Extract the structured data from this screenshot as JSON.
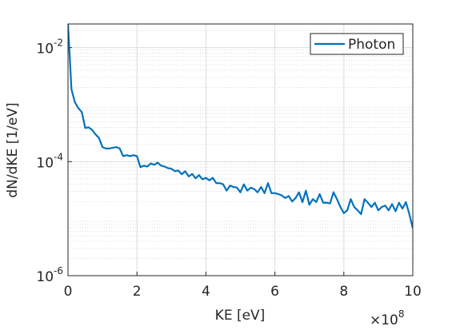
{
  "chart_data": {
    "type": "line",
    "xlabel": "KE [eV]",
    "ylabel": "dN/dKE [1/eV]",
    "x_multiplier": "×10",
    "x_multiplier_exp": "8",
    "yscale": "log",
    "grid": true,
    "minor_grid": true,
    "legend": "northeast",
    "xlim": [
      0,
      1000000000.0
    ],
    "xticks": [
      {
        "value": 0,
        "label": "0"
      },
      {
        "value": 200000000.0,
        "label": "2"
      },
      {
        "value": 400000000.0,
        "label": "4"
      },
      {
        "value": 600000000.0,
        "label": "6"
      },
      {
        "value": 800000000.0,
        "label": "8"
      },
      {
        "value": 1000000000.0,
        "label": "10"
      }
    ],
    "ylim": [
      1e-06,
      0.026
    ],
    "yticks": [
      {
        "value": 1e-06,
        "label": "10",
        "exponent": "-6"
      },
      {
        "value": 0.0001,
        "label": "10",
        "exponent": "-4"
      },
      {
        "value": 0.01,
        "label": "10",
        "exponent": "-2"
      }
    ],
    "x": [
      0,
      10000000.0,
      20000000.0,
      30000000.0,
      40000000.0,
      50000000.0,
      60000000.0,
      70000000.0,
      80000000.0,
      90000000.0,
      100000000.0,
      110000000.0,
      120000000.0,
      130000000.0,
      140000000.0,
      150000000.0,
      160000000.0,
      170000000.0,
      180000000.0,
      190000000.0,
      200000000.0,
      210000000.0,
      220000000.0,
      230000000.0,
      240000000.0,
      250000000.0,
      260000000.0,
      270000000.0,
      280000000.0,
      290000000.0,
      300000000.0,
      310000000.0,
      320000000.0,
      330000000.0,
      340000000.0,
      350000000.0,
      360000000.0,
      370000000.0,
      380000000.0,
      390000000.0,
      400000000.0,
      410000000.0,
      420000000.0,
      430000000.0,
      440000000.0,
      450000000.0,
      460000000.0,
      470000000.0,
      480000000.0,
      490000000.0,
      500000000.0,
      510000000.0,
      520000000.0,
      530000000.0,
      540000000.0,
      550000000.0,
      560000000.0,
      570000000.0,
      580000000.0,
      590000000.0,
      600000000.0,
      610000000.0,
      620000000.0,
      630000000.0,
      640000000.0,
      650000000.0,
      660000000.0,
      670000000.0,
      680000000.0,
      690000000.0,
      700000000.0,
      710000000.0,
      720000000.0,
      730000000.0,
      740000000.0,
      750000000.0,
      760000000.0,
      770000000.0,
      780000000.0,
      790000000.0,
      800000000.0,
      810000000.0,
      820000000.0,
      830000000.0,
      840000000.0,
      850000000.0,
      860000000.0,
      870000000.0,
      880000000.0,
      890000000.0,
      900000000.0,
      910000000.0,
      920000000.0,
      930000000.0,
      940000000.0,
      950000000.0,
      960000000.0,
      970000000.0,
      980000000.0,
      990000000.0,
      1000000000.0
    ],
    "series": [
      {
        "name": "Photon",
        "color": "#0072bd",
        "values": [
          0.026,
          0.00186,
          0.0011,
          0.00087,
          0.00074,
          0.00039,
          0.0004,
          0.00036,
          0.0003,
          0.00026,
          0.00018,
          0.00017,
          0.00017,
          0.000175,
          0.00018,
          0.00017,
          0.000125,
          0.00013,
          0.000125,
          0.00013,
          0.000125,
          8e-05,
          8.5e-05,
          8.2e-05,
          9.3e-05,
          8.8e-05,
          9.6e-05,
          8.5e-05,
          8.2e-05,
          7.7e-05,
          7.5e-05,
          6.8e-05,
          7e-05,
          6e-05,
          6.8e-05,
          5.5e-05,
          6.1e-05,
          5.1e-05,
          5.8e-05,
          4.9e-05,
          5.2e-05,
          4.7e-05,
          5.2e-05,
          4.2e-05,
          4.2e-05,
          4e-05,
          3.1e-05,
          3.8e-05,
          3.6e-05,
          3.5e-05,
          2.9e-05,
          4e-05,
          3.1e-05,
          3.5e-05,
          3.3e-05,
          2.9e-05,
          3.6e-05,
          2.8e-05,
          4.2e-05,
          2.8e-05,
          2.8e-05,
          2.7e-05,
          2.55e-05,
          2.3e-05,
          2.5e-05,
          2e-05,
          2.3e-05,
          2.9e-05,
          1.95e-05,
          3.1e-05,
          1.75e-05,
          2.2e-05,
          1.95e-05,
          2.7e-05,
          1.9e-05,
          1.9e-05,
          1.85e-05,
          2.9e-05,
          2.2e-05,
          1.6e-05,
          1.25e-05,
          1.4e-05,
          2.2e-05,
          1.6e-05,
          1.4e-05,
          1.2e-05,
          2.2e-05,
          1.9e-05,
          1.6e-05,
          1.9e-05,
          1.4e-05,
          1.6e-05,
          1.7e-05,
          1.4e-05,
          1.8e-05,
          1.35e-05,
          1.9e-05,
          1.5e-05,
          1.95e-05,
          1.2e-05,
          6.8e-06
        ]
      }
    ]
  }
}
